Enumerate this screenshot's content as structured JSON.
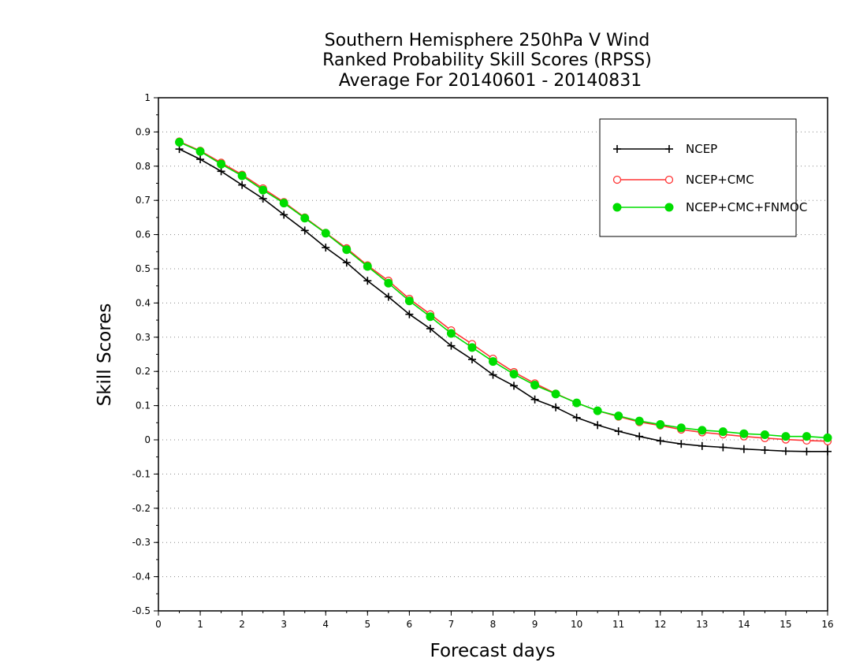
{
  "chart_data": {
    "type": "line",
    "title": [
      "Southern Hemisphere 250hPa V Wind",
      "Ranked Probability Skill Scores (RPSS)",
      "Average For 20140601 - 20140831"
    ],
    "xlabel": "Forecast days",
    "ylabel": "Skill Scores",
    "xlim": [
      0,
      16
    ],
    "ylim": [
      -0.5,
      1
    ],
    "xticks": [
      0,
      1,
      2,
      3,
      4,
      5,
      6,
      7,
      8,
      9,
      10,
      11,
      12,
      13,
      14,
      15,
      16
    ],
    "yticks": [
      -0.5,
      -0.4,
      -0.3,
      -0.2,
      -0.1,
      0,
      0.1,
      0.2,
      0.3,
      0.4,
      0.5,
      0.6,
      0.7,
      0.8,
      0.9,
      1
    ],
    "ytick_labels": [
      "-0.5",
      "-0.4",
      "-0.3",
      "-0.2",
      "-0.1",
      "0",
      "0.1",
      "0.2",
      "0.3",
      "0.4",
      "0.5",
      "0.6",
      "0.7",
      "0.8",
      "0.9",
      "1"
    ],
    "grid": "horizontal dotted",
    "legend_position": "top-right",
    "x": [
      0.5,
      1,
      1.5,
      2,
      2.5,
      3,
      3.5,
      4,
      4.5,
      5,
      5.5,
      6,
      6.5,
      7,
      7.5,
      8,
      8.5,
      9,
      9.5,
      10,
      10.5,
      11,
      11.5,
      12,
      12.5,
      13,
      13.5,
      14,
      14.5,
      15,
      15.5,
      16
    ],
    "series": [
      {
        "name": "NCEP",
        "color": "#000000",
        "marker": "plus",
        "values": [
          0.85,
          0.82,
          0.785,
          0.745,
          0.705,
          0.658,
          0.612,
          0.562,
          0.518,
          0.465,
          0.418,
          0.367,
          0.325,
          0.275,
          0.235,
          0.19,
          0.158,
          0.118,
          0.095,
          0.065,
          0.043,
          0.025,
          0.01,
          -0.003,
          -0.012,
          -0.018,
          -0.022,
          -0.027,
          -0.03,
          -0.033,
          -0.034,
          -0.034
        ]
      },
      {
        "name": "NCEP+CMC",
        "color": "#ff3333",
        "marker": "open-circle",
        "values": [
          0.872,
          0.845,
          0.81,
          0.775,
          0.735,
          0.695,
          0.65,
          0.605,
          0.56,
          0.51,
          0.465,
          0.412,
          0.367,
          0.32,
          0.28,
          0.237,
          0.198,
          0.165,
          0.135,
          0.108,
          0.085,
          0.068,
          0.052,
          0.042,
          0.03,
          0.022,
          0.016,
          0.01,
          0.005,
          0.001,
          -0.002,
          -0.004
        ]
      },
      {
        "name": "NCEP+CMC+FNMOC",
        "color": "#00dd00",
        "marker": "filled-circle",
        "values": [
          0.87,
          0.843,
          0.806,
          0.772,
          0.73,
          0.692,
          0.648,
          0.604,
          0.556,
          0.507,
          0.458,
          0.406,
          0.36,
          0.311,
          0.27,
          0.229,
          0.192,
          0.16,
          0.134,
          0.108,
          0.085,
          0.07,
          0.055,
          0.045,
          0.035,
          0.028,
          0.024,
          0.018,
          0.015,
          0.01,
          0.01,
          0.006
        ]
      }
    ]
  }
}
